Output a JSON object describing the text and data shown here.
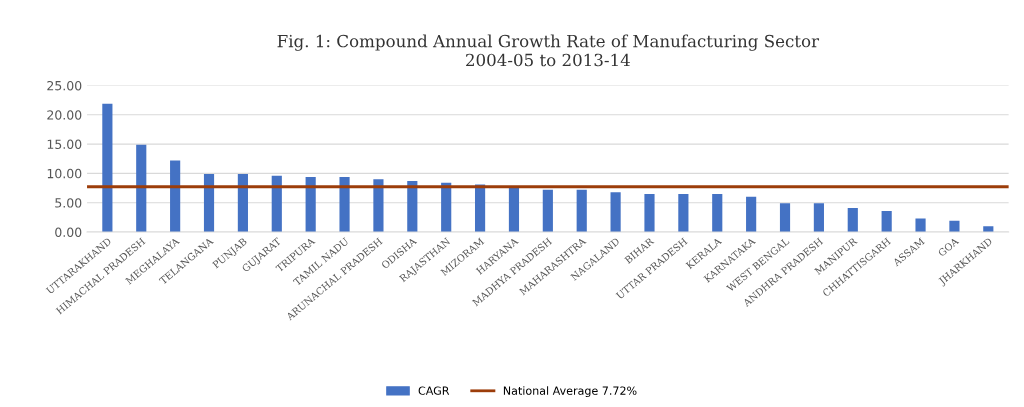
{
  "chart_data": {
    "type": "bar",
    "title": "Fig. 1: Compound Annual Growth Rate of Manufacturing Sector\n2004-05 to 2013-14",
    "categories": [
      "UTTARAKHAND",
      "HIMACHAL PRADESH",
      "MEGHALAYA",
      "TELANGANA",
      "PUNJAB",
      "GUJARAT",
      "TRIPURA",
      "TAMIL NADU",
      "ARUNACHAL PRADESH",
      "ODISHA",
      "RAJASTHAN",
      "MIZORAM",
      "HARYANA",
      "MADHYA PRADESH",
      "MAHARASHTRA",
      "NAGALAND",
      "BIHAR",
      "UTTAR PRADESH",
      "KERALA",
      "KARNATAKA",
      "WEST BENGAL",
      "ANDHRA PRADESH",
      "MANIPUR",
      "CHHATTISGARH",
      "ASSAM",
      "GOA",
      "JHARKHAND"
    ],
    "series": [
      {
        "name": "CAGR",
        "color": "#4472c4",
        "values": [
          21.9,
          14.9,
          12.2,
          9.9,
          9.9,
          9.6,
          9.4,
          9.4,
          9.0,
          8.7,
          8.4,
          8.1,
          7.6,
          7.2,
          7.2,
          6.8,
          6.5,
          6.5,
          6.5,
          6.0,
          4.9,
          4.9,
          4.1,
          3.6,
          2.3,
          1.9,
          1.0
        ]
      }
    ],
    "ref_lines": [
      {
        "axis": "y",
        "value": 7.72,
        "label": "National Average 7.72%",
        "color": "#9c3d0a"
      }
    ],
    "ylim": [
      0,
      25
    ],
    "yticks": [
      {
        "value": 0,
        "label": "0.00"
      },
      {
        "value": 5,
        "label": "5.00"
      },
      {
        "value": 10,
        "label": "10.00"
      },
      {
        "value": 15,
        "label": "15.00"
      },
      {
        "value": 20,
        "label": "20.00"
      },
      {
        "value": 25,
        "label": "25.00"
      }
    ],
    "grid": "y",
    "legend": "bottom"
  }
}
